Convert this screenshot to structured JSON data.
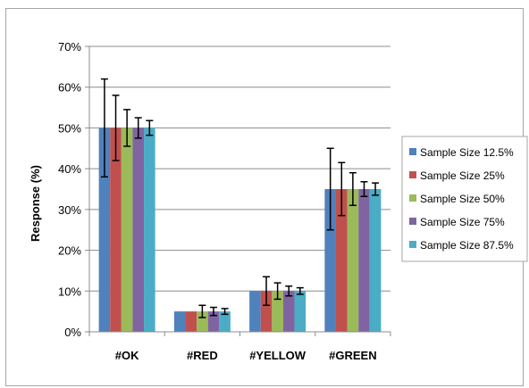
{
  "chart_data": {
    "type": "bar",
    "title": "",
    "xlabel": "",
    "ylabel": "Response (%)",
    "ylim": [
      0,
      70
    ],
    "y_ticks": [
      "0%",
      "10%",
      "20%",
      "30%",
      "40%",
      "50%",
      "60%",
      "70%"
    ],
    "y_tick_values": [
      0,
      10,
      20,
      30,
      40,
      50,
      60,
      70
    ],
    "grid": true,
    "legend_position": "right",
    "categories": [
      "#OK",
      "#RED",
      "#YELLOW",
      "#GREEN"
    ],
    "series": [
      {
        "name": "Sample Size 12.5%",
        "color": "#4f81bd",
        "values": [
          50,
          5,
          10,
          35
        ],
        "errors": [
          12,
          0,
          0,
          10
        ]
      },
      {
        "name": "Sample Size 25%",
        "color": "#c0504d",
        "values": [
          50,
          5,
          10,
          35
        ],
        "errors": [
          8,
          0,
          3.5,
          6.5
        ]
      },
      {
        "name": "Sample Size 50%",
        "color": "#9bbb59",
        "values": [
          50,
          5,
          10,
          35
        ],
        "errors": [
          4.5,
          1.5,
          2,
          4
        ]
      },
      {
        "name": "Sample Size 75%",
        "color": "#8064a2",
        "values": [
          50,
          5,
          10,
          35
        ],
        "errors": [
          2.5,
          1,
          1.2,
          1.8
        ]
      },
      {
        "name": "Sample Size 87.5%",
        "color": "#4bacc6",
        "values": [
          50,
          5,
          10,
          35
        ],
        "errors": [
          1.8,
          0.7,
          0.8,
          1.5
        ]
      }
    ]
  }
}
